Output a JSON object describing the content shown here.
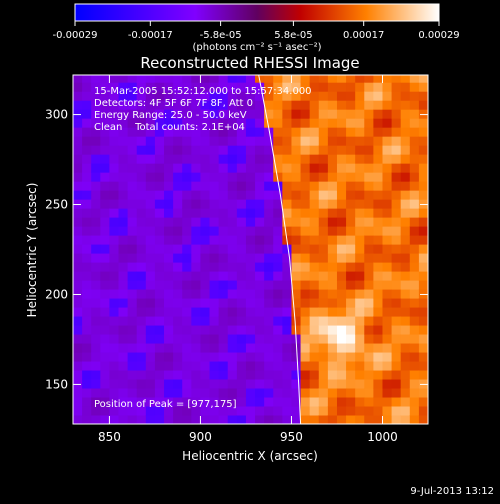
{
  "chart_data": {
    "type": "heatmap",
    "title": "Reconstructed RHESSI Image",
    "xlabel": "Heliocentric X (arcsec)",
    "ylabel": "Heliocentric Y (arcsec)",
    "xlim": [
      830,
      1025
    ],
    "ylim": [
      128,
      322
    ],
    "x_ticks": [
      850,
      900,
      950,
      1000
    ],
    "y_ticks": [
      150,
      200,
      250,
      300
    ],
    "colorbar": {
      "ticks": [
        -0.00029,
        -0.00017,
        -5.8e-05,
        5.8e-05,
        0.00017,
        0.00029
      ],
      "tick_labels": [
        "-0.00029",
        "-0.00017",
        "-5.8e-05",
        "5.8e-05",
        "0.00017",
        "0.00029"
      ],
      "units_label": "(photons cm⁻² s⁻¹ asec⁻²)",
      "range": [
        -0.00029,
        0.00029
      ]
    },
    "info_lines": [
      "15-Mar-2005 15:52:12.000 to 15:57:34.000",
      "Detectors: 4F 5F 6F 7F 8F, Att 0",
      "Energy Range: 25.0 - 50.0 keV",
      "Clean    Total counts: 2.1E+04"
    ],
    "peak_label": "Position of Peak = [977,175]",
    "peak": [
      977,
      175
    ],
    "limb_curve": [
      [
        932,
        322
      ],
      [
        938,
        290
      ],
      [
        944,
        255
      ],
      [
        949,
        220
      ],
      [
        952,
        185
      ],
      [
        954,
        150
      ],
      [
        955,
        128
      ]
    ],
    "grid": false
  },
  "footer": {
    "date": "9-Jul-2013 13:12"
  },
  "colors": {
    "background": "#000000",
    "axis": "#ffffff"
  }
}
